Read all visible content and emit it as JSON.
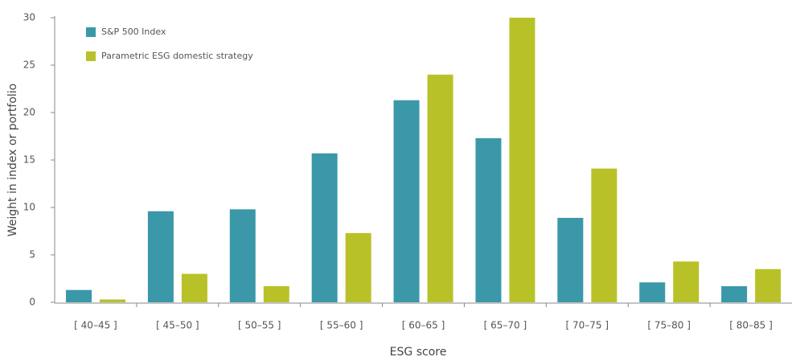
{
  "chart_data": {
    "type": "bar",
    "x_label": "ESG score",
    "y_label": "Weight in index or portfolio",
    "categories": [
      "[ 40–45 ]",
      "[ 45–50 ]",
      "[ 50–55 ]",
      "[ 55–60 ]",
      "[ 60–65 ]",
      "[ 65–70 ]",
      "[ 70–75 ]",
      "[ 75–80 ]",
      "[ 80–85 ]"
    ],
    "series": [
      {
        "name": "S&P 500 Index",
        "color": "#3a98a8",
        "values": [
          1.3,
          9.6,
          9.8,
          15.7,
          21.3,
          17.3,
          8.9,
          2.1,
          1.7
        ]
      },
      {
        "name": "Parametric ESG domestic strategy",
        "color": "#b8c228",
        "values": [
          0.3,
          3.0,
          1.7,
          7.3,
          24.0,
          30.0,
          14.1,
          4.3,
          3.5
        ]
      }
    ],
    "ylim": [
      0,
      30
    ],
    "yticks": [
      0,
      5,
      10,
      15,
      20,
      25,
      30
    ],
    "grid": false,
    "legend": "top-left"
  }
}
